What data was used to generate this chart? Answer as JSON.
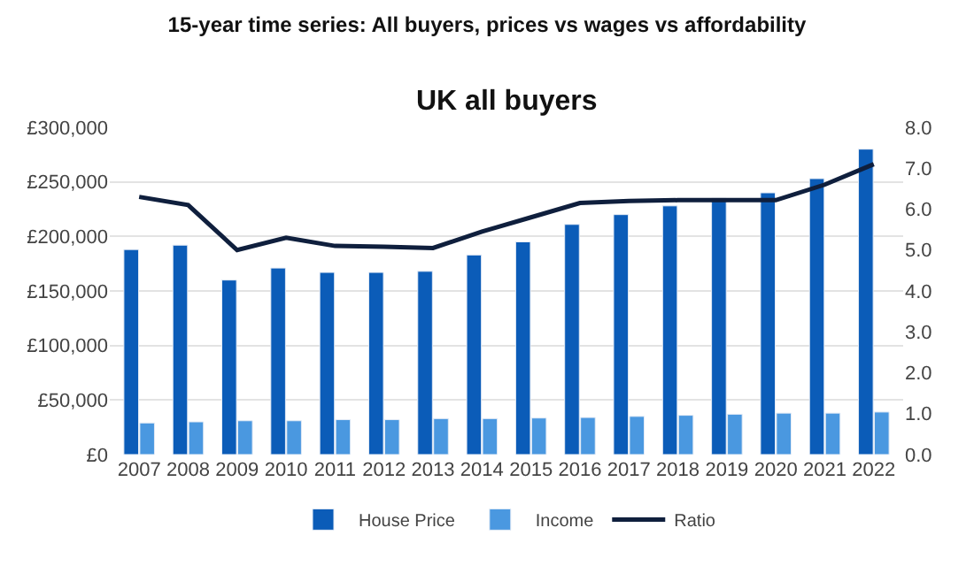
{
  "chart_data": {
    "type": "bar",
    "title": "15-year time series: All buyers, prices vs wages vs affordability",
    "subtitle": "UK all buyers",
    "categories": [
      "2007",
      "2008",
      "2009",
      "2010",
      "2011",
      "2012",
      "2013",
      "2014",
      "2015",
      "2016",
      "2017",
      "2018",
      "2019",
      "2020",
      "2021",
      "2022"
    ],
    "series": [
      {
        "name": "House Price",
        "color": "#0b5cb8",
        "values": [
          188000,
          192000,
          160000,
          171000,
          167000,
          167000,
          168000,
          183000,
          195000,
          211000,
          220000,
          228000,
          235000,
          240000,
          253000,
          280000
        ]
      },
      {
        "name": "Income",
        "color": "#4a98e0",
        "values": [
          29000,
          30000,
          31000,
          31000,
          32000,
          32000,
          33000,
          33000,
          33500,
          34000,
          35000,
          36000,
          37000,
          38000,
          38000,
          39000
        ]
      },
      {
        "name": "Ratio",
        "type": "line",
        "axis": "y2",
        "color": "#0f1f3d",
        "values": [
          6.3,
          6.1,
          5.0,
          5.3,
          5.1,
          5.08,
          5.05,
          5.45,
          5.8,
          6.15,
          6.2,
          6.22,
          6.22,
          6.22,
          6.6,
          7.1
        ]
      }
    ],
    "ylim": [
      0,
      300000
    ],
    "yticks": [
      {
        "value": 0,
        "label": "£0"
      },
      {
        "value": 50000,
        "label": "£50,000"
      },
      {
        "value": 100000,
        "label": "£100,000"
      },
      {
        "value": 150000,
        "label": "£150,000"
      },
      {
        "value": 200000,
        "label": "£200,000"
      },
      {
        "value": 250000,
        "label": "£250,000"
      },
      {
        "value": 300000,
        "label": "£300,000"
      }
    ],
    "y2lim": [
      0,
      8
    ],
    "y2ticks": [
      {
        "value": 0,
        "label": "0.0"
      },
      {
        "value": 1,
        "label": "1.0"
      },
      {
        "value": 2,
        "label": "2.0"
      },
      {
        "value": 3,
        "label": "3.0"
      },
      {
        "value": 4,
        "label": "4.0"
      },
      {
        "value": 5,
        "label": "5.0"
      },
      {
        "value": 6,
        "label": "6.0"
      },
      {
        "value": 7,
        "label": "7.0"
      },
      {
        "value": 8,
        "label": "8.0"
      }
    ],
    "grid": "y",
    "legend": "bottom"
  }
}
